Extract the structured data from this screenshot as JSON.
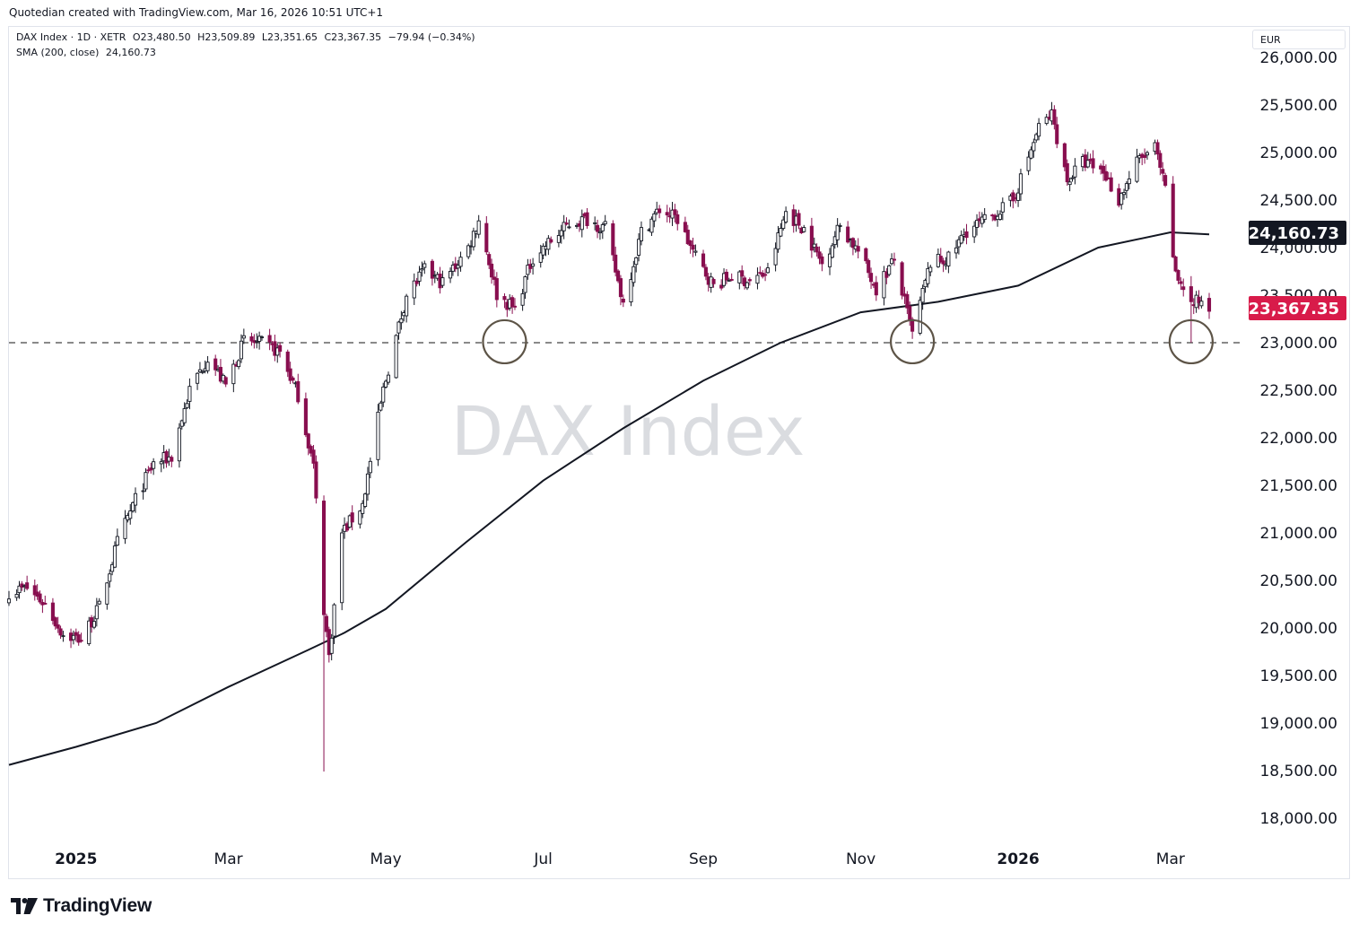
{
  "header": {
    "attribution": "Quotedian created with TradingView.com, Mar 16, 2026 10:51 UTC+1"
  },
  "legend": {
    "symbol": "DAX Index · 1D · XETR",
    "open": "O23,480.50",
    "high": "H23,509.89",
    "low": "L23,351.65",
    "close": "C23,367.35",
    "change": "−79.94 (−0.34%)",
    "indicator": "SMA (200, close)",
    "indicator_value": "24,160.73"
  },
  "currency": "EUR",
  "watermark": "DAX Index",
  "brand": "TradingView",
  "colors": {
    "up": "#131722",
    "down": "#880e4f",
    "sma": "#131722",
    "last_price_bg": "#d81b4a",
    "sma_label_bg": "#131722"
  },
  "chart_data": {
    "type": "candlestick",
    "y_axis_ticks": [
      "18,000.00",
      "18,500.00",
      "19,000.00",
      "19,500.00",
      "20,000.00",
      "20,500.00",
      "21,000.00",
      "21,500.00",
      "22,000.00",
      "22,500.00",
      "23,000.00",
      "23,500.00",
      "24,000.00",
      "24,500.00",
      "25,000.00",
      "25,500.00",
      "26,000.00"
    ],
    "y_axis_values": [
      18000,
      18500,
      19000,
      19500,
      20000,
      20500,
      21000,
      21500,
      22000,
      22500,
      23000,
      23500,
      24000,
      24500,
      25000,
      25500,
      26000
    ],
    "ylim": [
      17700,
      26120
    ],
    "x_axis_ticks": [
      {
        "label": "2025",
        "date": "2025-01-01",
        "bold": true
      },
      {
        "label": "Mar",
        "date": "2025-03-01",
        "bold": false
      },
      {
        "label": "May",
        "date": "2025-05-01",
        "bold": false
      },
      {
        "label": "Jul",
        "date": "2025-07-01",
        "bold": false
      },
      {
        "label": "Sep",
        "date": "2025-09-01",
        "bold": false
      },
      {
        "label": "Nov",
        "date": "2025-11-01",
        "bold": false
      },
      {
        "label": "2026",
        "date": "2026-01-01",
        "bold": true
      },
      {
        "label": "Mar",
        "date": "2026-03-01",
        "bold": false
      }
    ],
    "xlim": [
      "2024-12-06",
      "2026-03-16"
    ],
    "price_path": [
      [
        "2024-12-06",
        20380
      ],
      [
        "2024-12-13",
        20420
      ],
      [
        "2024-12-20",
        20250
      ],
      [
        "2024-12-27",
        19930
      ],
      [
        "2025-01-03",
        19880
      ],
      [
        "2025-01-10",
        20220
      ],
      [
        "2025-01-17",
        20900
      ],
      [
        "2025-01-24",
        21350
      ],
      [
        "2025-01-31",
        21730
      ],
      [
        "2025-02-07",
        21800
      ],
      [
        "2025-02-14",
        22500
      ],
      [
        "2025-02-21",
        22850
      ],
      [
        "2025-02-28",
        22550
      ],
      [
        "2025-03-07",
        23020
      ],
      [
        "2025-03-14",
        22990
      ],
      [
        "2025-03-21",
        22900
      ],
      [
        "2025-03-28",
        22450
      ],
      [
        "2025-04-03",
        21700
      ],
      [
        "2025-04-07",
        20200
      ],
      [
        "2025-04-09",
        19700
      ],
      [
        "2025-04-14",
        21000
      ],
      [
        "2025-04-22",
        21300
      ],
      [
        "2025-04-30",
        22500
      ],
      [
        "2025-05-09",
        23500
      ],
      [
        "2025-05-16",
        23760
      ],
      [
        "2025-05-23",
        23630
      ],
      [
        "2025-06-02",
        24000
      ],
      [
        "2025-06-06",
        24300
      ],
      [
        "2025-06-13",
        23510
      ],
      [
        "2025-06-20",
        23350
      ],
      [
        "2025-06-27",
        23900
      ],
      [
        "2025-07-04",
        24070
      ],
      [
        "2025-07-11",
        24250
      ],
      [
        "2025-07-18",
        24300
      ],
      [
        "2025-07-25",
        24200
      ],
      [
        "2025-08-01",
        23420
      ],
      [
        "2025-08-08",
        24160
      ],
      [
        "2025-08-15",
        24400
      ],
      [
        "2025-08-22",
        24300
      ],
      [
        "2025-08-29",
        23900
      ],
      [
        "2025-09-05",
        23600
      ],
      [
        "2025-09-12",
        23700
      ],
      [
        "2025-09-19",
        23650
      ],
      [
        "2025-09-26",
        23740
      ],
      [
        "2025-10-03",
        24380
      ],
      [
        "2025-10-10",
        24200
      ],
      [
        "2025-10-17",
        23830
      ],
      [
        "2025-10-24",
        24240
      ],
      [
        "2025-10-31",
        23960
      ],
      [
        "2025-11-07",
        23570
      ],
      [
        "2025-11-14",
        23870
      ],
      [
        "2025-11-21",
        23090
      ],
      [
        "2025-11-28",
        23840
      ],
      [
        "2025-12-05",
        23880
      ],
      [
        "2025-12-12",
        24180
      ],
      [
        "2025-12-19",
        24280
      ],
      [
        "2025-12-30",
        24490
      ],
      [
        "2026-01-09",
        25260
      ],
      [
        "2026-01-14",
        25400
      ],
      [
        "2026-01-20",
        24700
      ],
      [
        "2026-01-26",
        24900
      ],
      [
        "2026-02-03",
        24800
      ],
      [
        "2026-02-09",
        24500
      ],
      [
        "2026-02-16",
        24900
      ],
      [
        "2026-02-23",
        25050
      ],
      [
        "2026-02-27",
        24600
      ],
      [
        "2026-03-03",
        23700
      ],
      [
        "2026-03-06",
        23600
      ],
      [
        "2026-03-09",
        23400
      ],
      [
        "2026-03-13",
        23450
      ],
      [
        "2026-03-16",
        23367
      ]
    ],
    "extreme_wicks": [
      [
        "2025-04-07",
        18490,
        20300
      ],
      [
        "2026-03-09",
        23000,
        23700
      ]
    ],
    "sma_path": [
      [
        "2024-12-06",
        18560
      ],
      [
        "2025-01-01",
        18750
      ],
      [
        "2025-02-01",
        19000
      ],
      [
        "2025-03-01",
        19380
      ],
      [
        "2025-04-01",
        19770
      ],
      [
        "2025-04-15",
        19950
      ],
      [
        "2025-05-01",
        20200
      ],
      [
        "2025-06-01",
        20900
      ],
      [
        "2025-07-01",
        21550
      ],
      [
        "2025-08-01",
        22100
      ],
      [
        "2025-09-01",
        22600
      ],
      [
        "2025-10-01",
        23000
      ],
      [
        "2025-11-01",
        23320
      ],
      [
        "2025-12-01",
        23430
      ],
      [
        "2026-01-01",
        23600
      ],
      [
        "2026-02-01",
        24000
      ],
      [
        "2026-03-01",
        24160
      ],
      [
        "2026-03-16",
        24140
      ]
    ],
    "support_level": 23000,
    "highlight_circles": [
      {
        "date": "2025-06-16",
        "value": 23010
      },
      {
        "date": "2025-11-21",
        "value": 23010
      },
      {
        "date": "2026-03-09",
        "value": 23010
      }
    ],
    "price_labels": [
      {
        "value": 24160.73,
        "text": "24,160.73",
        "kind": "sma"
      },
      {
        "value": 23367.35,
        "text": "23,367.35",
        "kind": "last"
      }
    ]
  }
}
